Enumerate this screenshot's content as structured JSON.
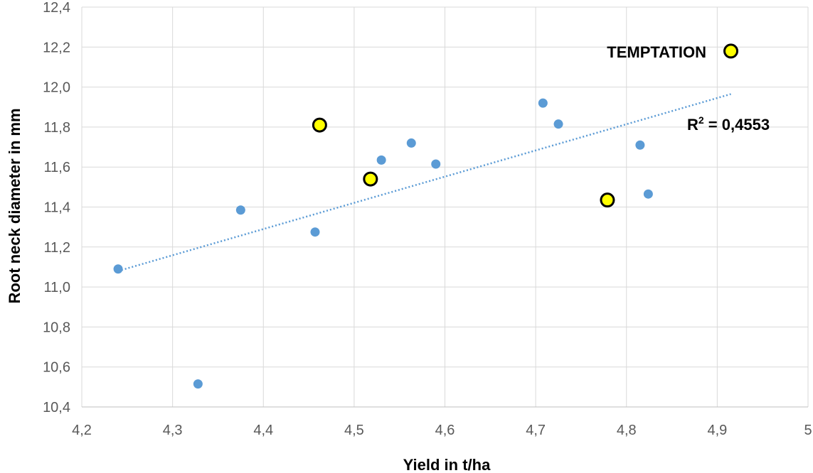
{
  "chart_data": {
    "type": "scatter",
    "xlabel": "Yield in t/ha",
    "ylabel": "Root neck diameter in mm",
    "xlim": [
      4.2,
      5.0
    ],
    "ylim": [
      10.4,
      12.4
    ],
    "x_ticks": [
      "4,2",
      "4,3",
      "4,4",
      "4,5",
      "4,6",
      "4,7",
      "4,8",
      "4,9",
      "5"
    ],
    "y_ticks": [
      "10,4",
      "10,6",
      "10,8",
      "11,0",
      "11,2",
      "11,4",
      "11,6",
      "11,8",
      "12,0",
      "12,2",
      "12,4"
    ],
    "grid": true,
    "series": [
      {
        "color": "#5b9bd5",
        "points": [
          {
            "x": 4.24,
            "y": 11.09
          },
          {
            "x": 4.328,
            "y": 10.515
          },
          {
            "x": 4.375,
            "y": 11.385
          },
          {
            "x": 4.457,
            "y": 11.275
          },
          {
            "x": 4.53,
            "y": 11.635
          },
          {
            "x": 4.563,
            "y": 11.72
          },
          {
            "x": 4.59,
            "y": 11.615
          },
          {
            "x": 4.708,
            "y": 11.92
          },
          {
            "x": 4.725,
            "y": 11.815
          },
          {
            "x": 4.815,
            "y": 11.71
          },
          {
            "x": 4.824,
            "y": 11.465
          }
        ]
      },
      {
        "color": "#ffff00",
        "edge_color": "#000000",
        "points": [
          {
            "x": 4.462,
            "y": 11.81
          },
          {
            "x": 4.518,
            "y": 11.54
          },
          {
            "x": 4.779,
            "y": 11.435
          },
          {
            "x": 4.915,
            "y": 12.18
          }
        ]
      }
    ],
    "trendline": {
      "style": "dotted",
      "color": "#5b9bd5",
      "x": [
        4.24,
        4.915
      ],
      "y": [
        11.08,
        11.965
      ]
    },
    "annotations": {
      "highlight_label": "TEMPTATION",
      "r2_prefix": "R",
      "r2_sup": "2",
      "r2_value": " = 0,4553"
    }
  }
}
